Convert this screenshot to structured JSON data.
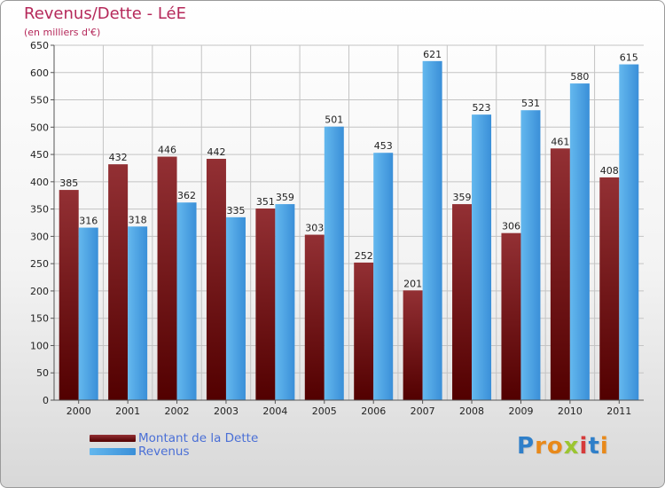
{
  "title": "Revenus/Dette - LéE",
  "subtitle": "(en milliers d'€)",
  "chart_data": {
    "type": "bar",
    "title": "Revenus/Dette - LéE",
    "subtitle": "(en milliers d'€)",
    "categories": [
      "2000",
      "2001",
      "2002",
      "2003",
      "2004",
      "2005",
      "2006",
      "2007",
      "2008",
      "2009",
      "2010",
      "2011"
    ],
    "series": [
      {
        "name": "Montant de la Dette",
        "color": "#8b1a1a",
        "values": [
          385,
          432,
          446,
          442,
          351,
          303,
          252,
          201,
          359,
          306,
          461,
          408
        ]
      },
      {
        "name": "Revenus",
        "color": "#3a8fd8",
        "values": [
          316,
          318,
          362,
          335,
          359,
          501,
          453,
          621,
          523,
          531,
          580,
          615
        ]
      }
    ],
    "ylim": [
      0,
      650
    ],
    "yticks": [
      0,
      50,
      100,
      150,
      200,
      250,
      300,
      350,
      400,
      450,
      500,
      550,
      600,
      650
    ],
    "grid": true,
    "legend_position": "bottom-left"
  },
  "legend": {
    "items": [
      {
        "label": "Montant de la Dette",
        "color": "#8b1a1a"
      },
      {
        "label": "Revenus",
        "color": "#3a8fd8"
      }
    ]
  },
  "logo": {
    "text": "Proxiti",
    "letters": [
      {
        "ch": "P",
        "color": "#2f7fc9"
      },
      {
        "ch": "r",
        "color": "#e8891a"
      },
      {
        "ch": "o",
        "color": "#e8891a"
      },
      {
        "ch": "x",
        "color": "#9bc531"
      },
      {
        "ch": "i",
        "color": "#d63a3a"
      },
      {
        "ch": "t",
        "color": "#2f7fc9"
      },
      {
        "ch": "i",
        "color": "#e8891a"
      }
    ]
  }
}
